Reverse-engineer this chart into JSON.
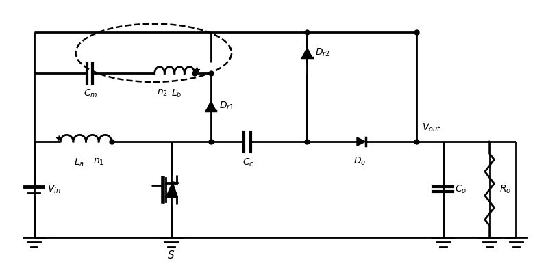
{
  "background": "#ffffff",
  "line_color": "#000000",
  "line_width": 2.0,
  "figsize": [
    8.0,
    3.86
  ],
  "dpi": 100,
  "xlim": [
    0,
    8.0
  ],
  "ylim": [
    0,
    3.86
  ]
}
